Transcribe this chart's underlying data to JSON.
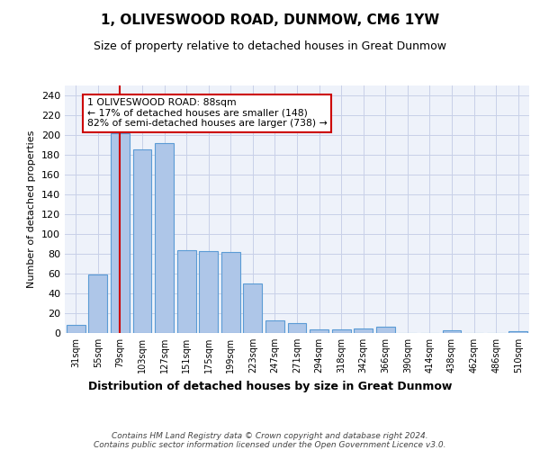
{
  "title": "1, OLIVESWOOD ROAD, DUNMOW, CM6 1YW",
  "subtitle": "Size of property relative to detached houses in Great Dunmow",
  "xlabel": "Distribution of detached houses by size in Great Dunmow",
  "ylabel": "Number of detached properties",
  "categories": [
    "31sqm",
    "55sqm",
    "79sqm",
    "103sqm",
    "127sqm",
    "151sqm",
    "175sqm",
    "199sqm",
    "223sqm",
    "247sqm",
    "271sqm",
    "294sqm",
    "318sqm",
    "342sqm",
    "366sqm",
    "390sqm",
    "414sqm",
    "438sqm",
    "462sqm",
    "486sqm",
    "510sqm"
  ],
  "values": [
    8,
    59,
    202,
    185,
    192,
    84,
    83,
    82,
    50,
    13,
    10,
    4,
    4,
    5,
    6,
    0,
    0,
    3,
    0,
    0,
    2
  ],
  "bar_color": "#aec6e8",
  "bar_edge_color": "#5b9bd5",
  "vline_x": 2,
  "vline_color": "#cc0000",
  "annotation_text": "1 OLIVESWOOD ROAD: 88sqm\n← 17% of detached houses are smaller (148)\n82% of semi-detached houses are larger (738) →",
  "annotation_box_color": "#ffffff",
  "annotation_box_edge_color": "#cc0000",
  "ylim": [
    0,
    250
  ],
  "yticks": [
    0,
    20,
    40,
    60,
    80,
    100,
    120,
    140,
    160,
    180,
    200,
    220,
    240
  ],
  "footer_line1": "Contains HM Land Registry data © Crown copyright and database right 2024.",
  "footer_line2": "Contains public sector information licensed under the Open Government Licence v3.0.",
  "bg_color": "#eef2fa",
  "grid_color": "#c8d0e8",
  "title_fontsize": 11,
  "subtitle_fontsize": 9,
  "xlabel_fontsize": 9,
  "ylabel_fontsize": 8
}
